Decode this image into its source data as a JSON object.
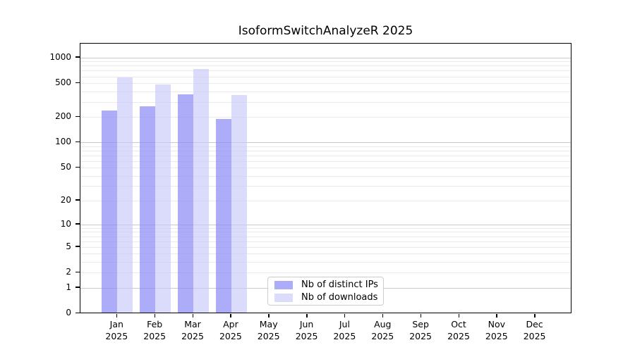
{
  "title": "IsoformSwitchAnalyzeR 2025",
  "chart_data": {
    "type": "bar",
    "title": "IsoformSwitchAnalyzeR 2025",
    "year": "2025",
    "categories": [
      "Jan",
      "Feb",
      "Mar",
      "Apr",
      "May",
      "Jun",
      "Jul",
      "Aug",
      "Sep",
      "Oct",
      "Nov",
      "Dec"
    ],
    "series": [
      {
        "name": "Nb of distinct IPs",
        "color": "rgba(140,140,245,0.72)",
        "legend_color": "#acacf8",
        "values": [
          240,
          268,
          370,
          189,
          null,
          null,
          null,
          null,
          null,
          null,
          null,
          null
        ]
      },
      {
        "name": "Nb of downloads",
        "color": "rgba(200,200,250,0.65)",
        "legend_color": "#dbdbfb",
        "values": [
          580,
          480,
          735,
          365,
          null,
          null,
          null,
          null,
          null,
          null,
          null,
          null
        ]
      }
    ],
    "y_axis": {
      "scale": "log1p",
      "tick_labels": [
        0,
        1,
        2,
        5,
        10,
        20,
        50,
        100,
        200,
        500,
        1000
      ],
      "max": 1455
    },
    "x_axis": {
      "tick_count": 12
    },
    "grid": {
      "major": [
        1,
        10,
        100,
        1000
      ],
      "minor": [
        2,
        3,
        4,
        5,
        6,
        7,
        8,
        9,
        20,
        30,
        40,
        50,
        60,
        70,
        80,
        90,
        200,
        300,
        400,
        500,
        600,
        700,
        800,
        900
      ]
    },
    "legend": {
      "position": "lower-center-inside",
      "entries": [
        "Nb of distinct IPs",
        "Nb of downloads"
      ]
    }
  }
}
